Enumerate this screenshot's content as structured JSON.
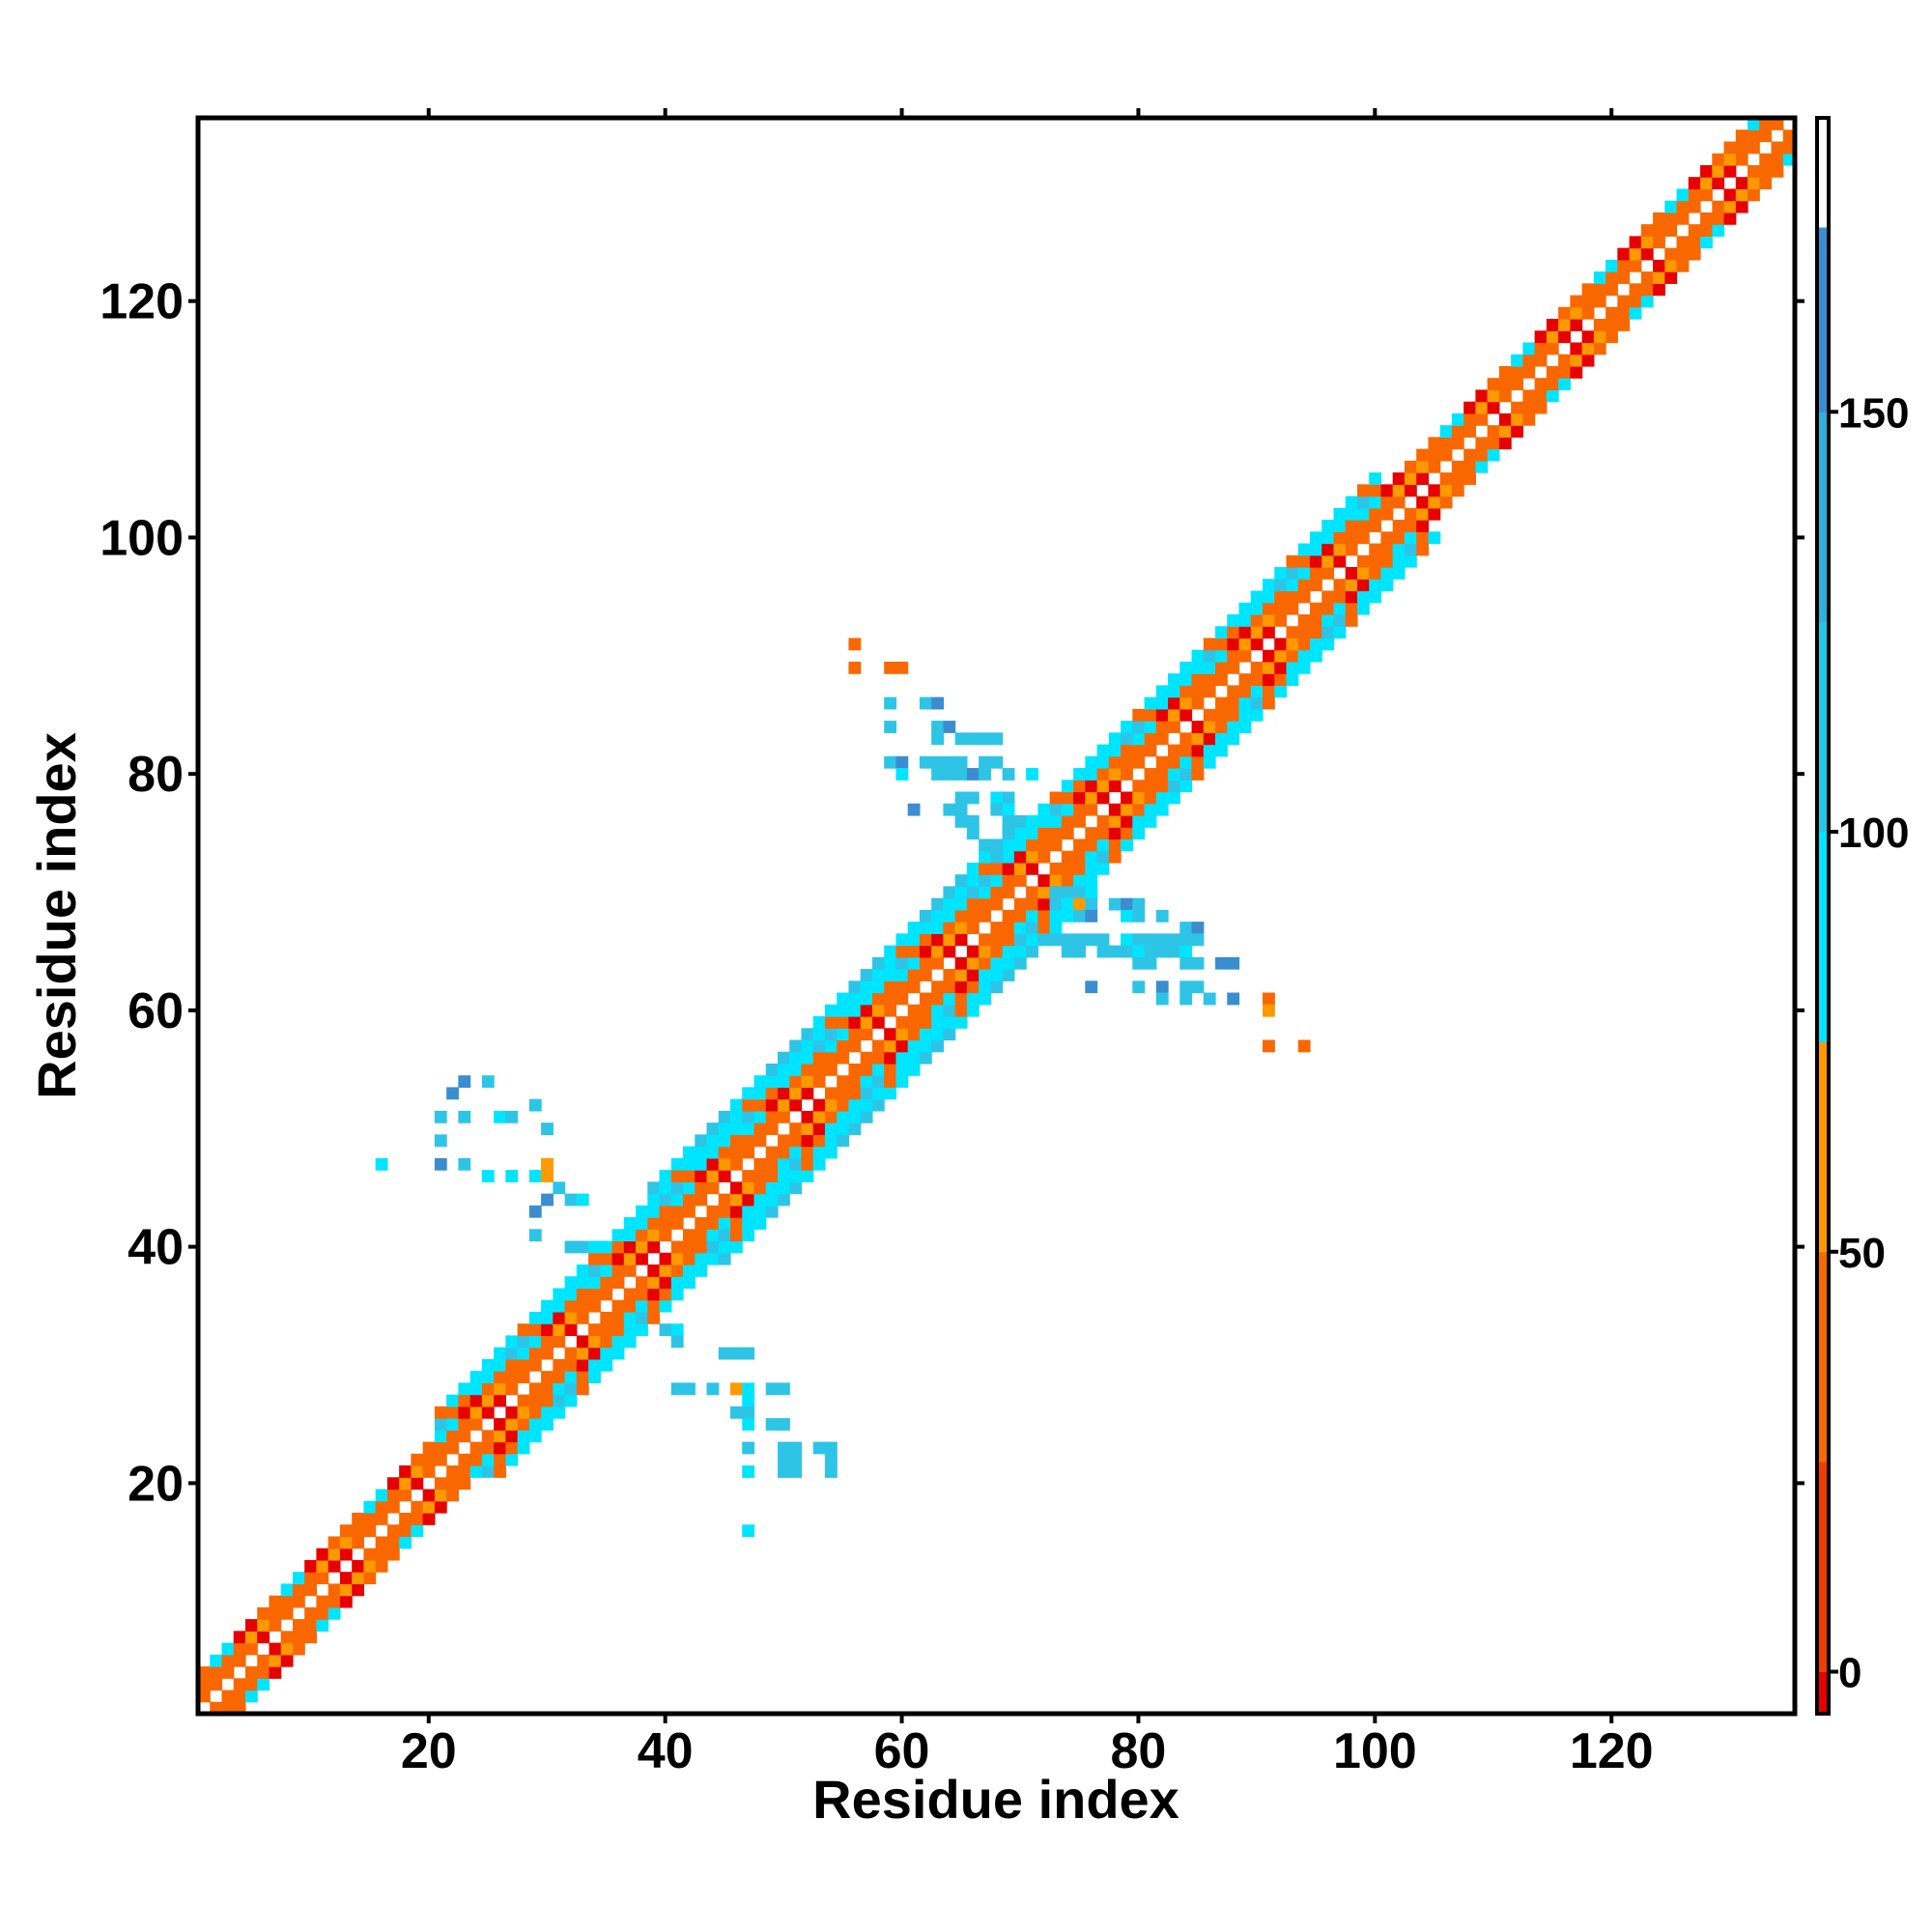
{
  "chart_data": {
    "type": "heatmap",
    "title": "",
    "xlabel": "Residue index",
    "ylabel": "Residue index",
    "xlim": [
      1,
      135
    ],
    "ylim": [
      1,
      135
    ],
    "x_ticks": [
      20,
      40,
      60,
      80,
      100,
      120
    ],
    "y_ticks": [
      20,
      40,
      60,
      80,
      100,
      120
    ],
    "grid": false,
    "colorbar": {
      "position": "right",
      "range": [
        -5,
        185
      ],
      "ticks": [
        0,
        50,
        100,
        150
      ],
      "segments": [
        {
          "from": -5,
          "to": 0,
          "color": "#e60000"
        },
        {
          "from": 0,
          "to": 25,
          "color": "#f03c00"
        },
        {
          "from": 25,
          "to": 50,
          "color": "#f96800"
        },
        {
          "from": 50,
          "to": 75,
          "color": "#ff9900"
        },
        {
          "from": 75,
          "to": 100,
          "color": "#00e5ff"
        },
        {
          "from": 100,
          "to": 125,
          "color": "#22c8e8"
        },
        {
          "from": 125,
          "to": 150,
          "color": "#2fb0dc"
        },
        {
          "from": 150,
          "to": 172,
          "color": "#3a8ed0"
        },
        {
          "from": 172,
          "to": 185,
          "color": "#ffffff"
        }
      ]
    },
    "palette": {
      "red": "#e60000",
      "orange": "#f96800",
      "amber": "#ff9900",
      "cyan": "#00e5ff",
      "lightblue": "#2ec4e6",
      "steelblue": "#3a8ed0"
    },
    "band_summary": [
      {
        "from": 1,
        "to": 20,
        "halfwidth": 3
      },
      {
        "from": 20,
        "to": 38,
        "halfwidth": 5
      },
      {
        "from": 38,
        "to": 70,
        "halfwidth": 6
      },
      {
        "from": 70,
        "to": 100,
        "halfwidth": 5
      },
      {
        "from": 100,
        "to": 135,
        "halfwidth": 3
      }
    ],
    "offdiag_cells": [
      [
        16,
        47,
        "cyan"
      ],
      [
        21,
        49,
        "lightblue"
      ],
      [
        23,
        51,
        "lightblue"
      ],
      [
        21,
        51,
        "lightblue"
      ],
      [
        22,
        53,
        "steelblue"
      ],
      [
        25,
        54,
        "lightblue"
      ],
      [
        23,
        54,
        "steelblue"
      ],
      [
        26,
        51,
        "cyan"
      ],
      [
        27,
        51,
        "lightblue"
      ],
      [
        29,
        52,
        "lightblue"
      ],
      [
        30,
        50,
        "lightblue"
      ],
      [
        21,
        47,
        "steelblue"
      ],
      [
        23,
        47,
        "lightblue"
      ],
      [
        25,
        46,
        "cyan"
      ],
      [
        27,
        46,
        "cyan"
      ],
      [
        29,
        46,
        "cyan"
      ],
      [
        30,
        46,
        "amber"
      ],
      [
        31,
        45,
        "lightblue"
      ],
      [
        32,
        44,
        "lightblue"
      ],
      [
        33,
        44,
        "cyan"
      ],
      [
        30,
        44,
        "steelblue"
      ],
      [
        29,
        43,
        "steelblue"
      ],
      [
        29,
        41,
        "lightblue"
      ],
      [
        32,
        40,
        "lightblue"
      ],
      [
        33,
        40,
        "lightblue"
      ],
      [
        34,
        40,
        "cyan"
      ],
      [
        30,
        47,
        "amber"
      ],
      [
        40,
        33,
        "lightblue"
      ],
      [
        41,
        33,
        "cyan"
      ],
      [
        41,
        32,
        "lightblue"
      ],
      [
        45,
        31,
        "lightblue"
      ],
      [
        46,
        31,
        "lightblue"
      ],
      [
        47,
        31,
        "lightblue"
      ],
      [
        41,
        28,
        "lightblue"
      ],
      [
        42,
        28,
        "lightblue"
      ],
      [
        44,
        28,
        "lightblue"
      ],
      [
        46,
        28,
        "amber"
      ],
      [
        47,
        28,
        "cyan"
      ],
      [
        47,
        27,
        "cyan"
      ],
      [
        49,
        28,
        "lightblue"
      ],
      [
        50,
        28,
        "lightblue"
      ],
      [
        46,
        26,
        "lightblue"
      ],
      [
        47,
        26,
        "lightblue"
      ],
      [
        47,
        25,
        "cyan"
      ],
      [
        49,
        25,
        "lightblue"
      ],
      [
        50,
        25,
        "lightblue"
      ],
      [
        47,
        23,
        "lightblue"
      ],
      [
        50,
        23,
        "lightblue"
      ],
      [
        51,
        23,
        "lightblue"
      ],
      [
        53,
        23,
        "lightblue"
      ],
      [
        54,
        23,
        "lightblue"
      ],
      [
        50,
        22,
        "lightblue"
      ],
      [
        51,
        22,
        "lightblue"
      ],
      [
        54,
        22,
        "lightblue"
      ],
      [
        47,
        21,
        "cyan"
      ],
      [
        50,
        21,
        "lightblue"
      ],
      [
        51,
        21,
        "lightblue"
      ],
      [
        54,
        21,
        "lightblue"
      ],
      [
        47,
        16,
        "cyan"
      ],
      [
        56,
        91,
        "orange"
      ],
      [
        56,
        89,
        "orange"
      ],
      [
        59,
        89,
        "orange"
      ],
      [
        60,
        89,
        "orange"
      ],
      [
        59,
        86,
        "lightblue"
      ],
      [
        59,
        84,
        "lightblue"
      ],
      [
        62,
        86,
        "lightblue"
      ],
      [
        63,
        86,
        "steelblue"
      ],
      [
        63,
        84,
        "lightblue"
      ],
      [
        64,
        84,
        "steelblue"
      ],
      [
        65,
        83,
        "lightblue"
      ],
      [
        66,
        83,
        "lightblue"
      ],
      [
        67,
        83,
        "lightblue"
      ],
      [
        63,
        83,
        "lightblue"
      ],
      [
        68,
        83,
        "lightblue"
      ],
      [
        59,
        81,
        "lightblue"
      ],
      [
        60,
        81,
        "steelblue"
      ],
      [
        62,
        81,
        "lightblue"
      ],
      [
        63,
        81,
        "lightblue"
      ],
      [
        64,
        81,
        "lightblue"
      ],
      [
        65,
        81,
        "lightblue"
      ],
      [
        67,
        81,
        "lightblue"
      ],
      [
        68,
        81,
        "lightblue"
      ],
      [
        60,
        80,
        "cyan"
      ],
      [
        63,
        80,
        "lightblue"
      ],
      [
        64,
        80,
        "lightblue"
      ],
      [
        65,
        80,
        "lightblue"
      ],
      [
        66,
        80,
        "steelblue"
      ],
      [
        67,
        80,
        "lightblue"
      ],
      [
        69,
        80,
        "lightblue"
      ],
      [
        71,
        80,
        "cyan"
      ],
      [
        65,
        78,
        "lightblue"
      ],
      [
        66,
        78,
        "lightblue"
      ],
      [
        68,
        78,
        "cyan"
      ],
      [
        69,
        78,
        "lightblue"
      ],
      [
        61,
        77,
        "steelblue"
      ],
      [
        64,
        77,
        "lightblue"
      ],
      [
        65,
        77,
        "lightblue"
      ],
      [
        68,
        77,
        "lightblue"
      ],
      [
        69,
        77,
        "cyan"
      ],
      [
        65,
        76,
        "lightblue"
      ],
      [
        66,
        76,
        "lightblue"
      ],
      [
        69,
        76,
        "lightblue"
      ],
      [
        66,
        75,
        "lightblue"
      ],
      [
        69,
        75,
        "lightblue"
      ],
      [
        67,
        74,
        "lightblue"
      ],
      [
        68,
        74,
        "lightblue"
      ],
      [
        68,
        73,
        "lightblue"
      ],
      [
        73,
        70,
        "lightblue"
      ],
      [
        74,
        70,
        "lightblue"
      ],
      [
        75,
        70,
        "lightblue"
      ],
      [
        76,
        70,
        "cyan"
      ],
      [
        73,
        69,
        "lightblue"
      ],
      [
        74,
        69,
        "cyan"
      ],
      [
        75,
        69,
        "amber"
      ],
      [
        76,
        69,
        "lightblue"
      ],
      [
        78,
        69,
        "lightblue"
      ],
      [
        79,
        69,
        "steelblue"
      ],
      [
        80,
        69,
        "lightblue"
      ],
      [
        75,
        68,
        "lightblue"
      ],
      [
        76,
        68,
        "steelblue"
      ],
      [
        79,
        68,
        "cyan"
      ],
      [
        80,
        68,
        "lightblue"
      ],
      [
        82,
        68,
        "lightblue"
      ],
      [
        84,
        67,
        "lightblue"
      ],
      [
        85,
        67,
        "steelblue"
      ],
      [
        72,
        66,
        "lightblue"
      ],
      [
        73,
        66,
        "lightblue"
      ],
      [
        74,
        66,
        "lightblue"
      ],
      [
        75,
        66,
        "lightblue"
      ],
      [
        76,
        66,
        "lightblue"
      ],
      [
        77,
        66,
        "lightblue"
      ],
      [
        79,
        66,
        "cyan"
      ],
      [
        80,
        66,
        "lightblue"
      ],
      [
        81,
        66,
        "lightblue"
      ],
      [
        82,
        66,
        "lightblue"
      ],
      [
        83,
        66,
        "lightblue"
      ],
      [
        84,
        66,
        "lightblue"
      ],
      [
        85,
        66,
        "lightblue"
      ],
      [
        74,
        65,
        "lightblue"
      ],
      [
        75,
        65,
        "lightblue"
      ],
      [
        77,
        65,
        "lightblue"
      ],
      [
        78,
        65,
        "lightblue"
      ],
      [
        79,
        65,
        "lightblue"
      ],
      [
        80,
        65,
        "cyan"
      ],
      [
        81,
        65,
        "lightblue"
      ],
      [
        82,
        65,
        "lightblue"
      ],
      [
        83,
        65,
        "lightblue"
      ],
      [
        84,
        65,
        "cyan"
      ],
      [
        80,
        64,
        "lightblue"
      ],
      [
        81,
        64,
        "lightblue"
      ],
      [
        84,
        64,
        "lightblue"
      ],
      [
        85,
        64,
        "lightblue"
      ],
      [
        87,
        64,
        "steelblue"
      ],
      [
        88,
        64,
        "steelblue"
      ],
      [
        76,
        62,
        "steelblue"
      ],
      [
        80,
        62,
        "lightblue"
      ],
      [
        82,
        62,
        "steelblue"
      ],
      [
        84,
        62,
        "lightblue"
      ],
      [
        85,
        62,
        "lightblue"
      ],
      [
        82,
        61,
        "lightblue"
      ],
      [
        84,
        61,
        "lightblue"
      ],
      [
        86,
        61,
        "lightblue"
      ],
      [
        88,
        61,
        "steelblue"
      ],
      [
        91,
        61,
        "orange"
      ],
      [
        91,
        60,
        "amber"
      ],
      [
        91,
        57,
        "orange"
      ],
      [
        94,
        57,
        "orange"
      ]
    ]
  }
}
